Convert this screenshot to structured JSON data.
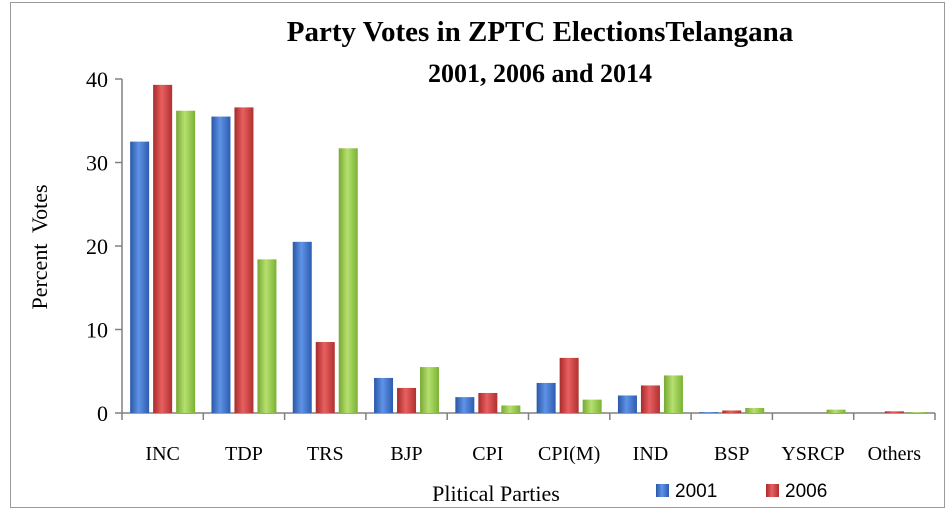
{
  "chart_data": {
    "type": "bar",
    "title": "Party Votes in ZPTC ElectionsTelangana",
    "subtitle": "2001, 2006 and 2014",
    "xlabel": "Plitical Parties",
    "ylabel": "Percent  Votes",
    "ylim": [
      0,
      40
    ],
    "yticks": [
      "0",
      "10",
      "20",
      "30",
      "40"
    ],
    "grid": false,
    "legend_position": "bottom-right",
    "categories": [
      "INC",
      "TDP",
      "TRS",
      "BJP",
      "CPI",
      "CPI(M)",
      "IND",
      "BSP",
      "YSRCP",
      "Others"
    ],
    "series": [
      {
        "name": "2001",
        "color": "#3a6fc4",
        "values": [
          32.5,
          35.5,
          20.5,
          4.2,
          1.9,
          3.6,
          2.1,
          0.1,
          0,
          0
        ]
      },
      {
        "name": "2006",
        "color": "#c63a3a",
        "values": [
          39.3,
          36.6,
          8.5,
          3.0,
          2.4,
          6.6,
          3.3,
          0.3,
          0,
          0.2
        ]
      },
      {
        "name": "",
        "color": "#8fc43f",
        "values": [
          36.2,
          18.4,
          31.7,
          5.5,
          0.9,
          1.6,
          4.5,
          0.6,
          0.4,
          0.1
        ]
      }
    ]
  }
}
